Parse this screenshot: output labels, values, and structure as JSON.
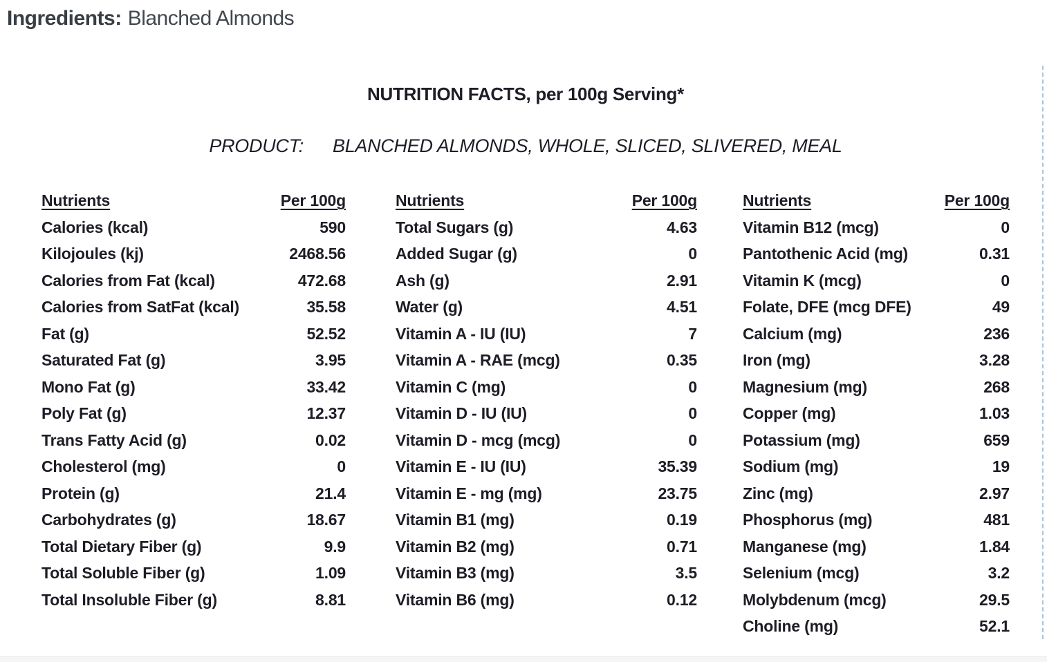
{
  "ingredients": {
    "label": "Ingredients:",
    "value": "Blanched Almonds"
  },
  "table": {
    "title": "NUTRITION FACTS, per 100g Serving*",
    "product_label": "PRODUCT:",
    "product_value": "BLANCHED ALMONDS, WHOLE, SLICED, SLIVERED, MEAL",
    "header_nutrient": "Nutrients",
    "header_amount": "Per 100g",
    "columns": [
      {
        "rows": [
          {
            "name": "Calories (kcal)",
            "value": "590"
          },
          {
            "name": "Kilojoules (kj)",
            "value": "2468.56"
          },
          {
            "name": "Calories from Fat (kcal)",
            "value": "472.68"
          },
          {
            "name": "Calories from SatFat (kcal)",
            "value": "35.58"
          },
          {
            "name": "Fat (g)",
            "value": "52.52"
          },
          {
            "name": "Saturated Fat (g)",
            "value": "3.95"
          },
          {
            "name": "Mono Fat (g)",
            "value": "33.42"
          },
          {
            "name": "Poly Fat (g)",
            "value": "12.37"
          },
          {
            "name": "Trans Fatty Acid (g)",
            "value": "0.02"
          },
          {
            "name": "Cholesterol (mg)",
            "value": "0"
          },
          {
            "name": "Protein (g)",
            "value": "21.4"
          },
          {
            "name": "Carbohydrates (g)",
            "value": "18.67"
          },
          {
            "name": "Total Dietary Fiber (g)",
            "value": "9.9"
          },
          {
            "name": "Total Soluble Fiber (g)",
            "value": "1.09"
          },
          {
            "name": "Total Insoluble Fiber (g)",
            "value": "8.81"
          }
        ]
      },
      {
        "rows": [
          {
            "name": "Total Sugars (g)",
            "value": "4.63"
          },
          {
            "name": "Added Sugar (g)",
            "value": "0"
          },
          {
            "name": "Ash (g)",
            "value": "2.91"
          },
          {
            "name": "Water (g)",
            "value": "4.51"
          },
          {
            "name": "Vitamin A - IU (IU)",
            "value": "7"
          },
          {
            "name": "Vitamin A - RAE (mcg)",
            "value": "0.35"
          },
          {
            "name": "Vitamin C (mg)",
            "value": "0"
          },
          {
            "name": "Vitamin D - IU (IU)",
            "value": "0"
          },
          {
            "name": "Vitamin D - mcg (mcg)",
            "value": "0"
          },
          {
            "name": "Vitamin E - IU (IU)",
            "value": "35.39"
          },
          {
            "name": "Vitamin E - mg (mg)",
            "value": "23.75"
          },
          {
            "name": "Vitamin B1 (mg)",
            "value": "0.19"
          },
          {
            "name": "Vitamin B2 (mg)",
            "value": "0.71"
          },
          {
            "name": "Vitamin B3 (mg)",
            "value": "3.5"
          },
          {
            "name": "Vitamin B6 (mg)",
            "value": "0.12"
          }
        ]
      },
      {
        "rows": [
          {
            "name": "Vitamin B12 (mcg)",
            "value": "0"
          },
          {
            "name": "Pantothenic Acid (mg)",
            "value": "0.31"
          },
          {
            "name": "Vitamin K (mcg)",
            "value": "0"
          },
          {
            "name": "Folate, DFE (mcg DFE)",
            "value": "49"
          },
          {
            "name": "Calcium (mg)",
            "value": "236"
          },
          {
            "name": "Iron (mg)",
            "value": "3.28"
          },
          {
            "name": "Magnesium (mg)",
            "value": "268"
          },
          {
            "name": "Copper (mg)",
            "value": "1.03"
          },
          {
            "name": "Potassium (mg)",
            "value": "659"
          },
          {
            "name": "Sodium (mg)",
            "value": "19"
          },
          {
            "name": "Zinc (mg)",
            "value": "2.97"
          },
          {
            "name": "Phosphorus (mg)",
            "value": "481"
          },
          {
            "name": "Manganese (mg)",
            "value": "1.84"
          },
          {
            "name": "Selenium (mcg)",
            "value": "3.2"
          },
          {
            "name": "Molybdenum (mcg)",
            "value": "29.5"
          },
          {
            "name": "Choline (mg)",
            "value": "52.1"
          }
        ]
      }
    ]
  },
  "colors": {
    "table_text": "#1f1c26",
    "header_text": "#383e43",
    "dashed_line": "#a9c6dc"
  }
}
